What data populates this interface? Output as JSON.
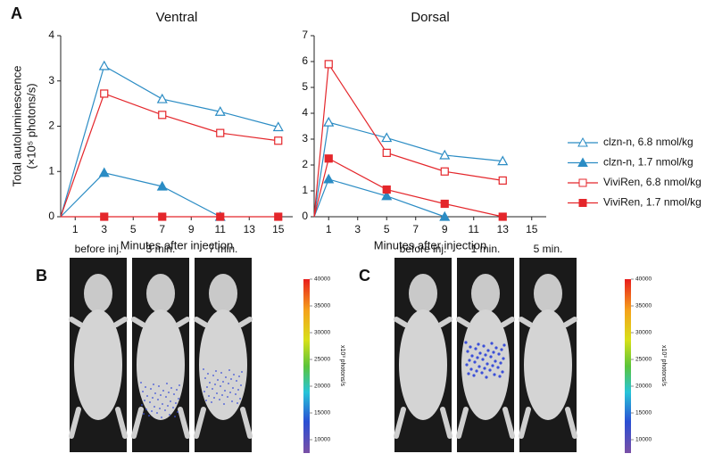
{
  "figure_label": "A",
  "chart_data": [
    {
      "type": "line",
      "title": "Ventral",
      "x_label": "Minutes after injection",
      "y_label": [
        "Total autoluminescence",
        "(×10⁵ photons/s)"
      ],
      "xlim": [
        0,
        16
      ],
      "ylim": [
        0,
        4
      ],
      "xticks": [
        1,
        3,
        5,
        7,
        9,
        11,
        13,
        15
      ],
      "yticks": [
        0,
        1,
        2,
        3,
        4
      ],
      "series": [
        {
          "color": "#2b8cc4",
          "marker": "triangle-open",
          "x": [
            0,
            3,
            7,
            11,
            15
          ],
          "values": [
            0,
            3.33,
            2.6,
            2.32,
            1.98
          ]
        },
        {
          "color": "#2b8cc4",
          "marker": "triangle-filled",
          "x": [
            0,
            3,
            7,
            11
          ],
          "values": [
            0,
            0.97,
            0.67,
            0
          ]
        },
        {
          "color": "#e4262b",
          "marker": "square-open",
          "x": [
            0,
            3,
            7,
            11,
            15
          ],
          "values": [
            0,
            2.72,
            2.25,
            1.85,
            1.68
          ]
        },
        {
          "color": "#e4262b",
          "marker": "square-filled",
          "x": [
            0,
            3,
            7,
            11,
            15
          ],
          "values": [
            0,
            0,
            0,
            0,
            0
          ]
        }
      ]
    },
    {
      "type": "line",
      "title": "Dorsal",
      "x_label": "Minutes after injection",
      "xlim": [
        0,
        16
      ],
      "ylim": [
        0,
        7
      ],
      "xticks": [
        1,
        3,
        5,
        7,
        9,
        11,
        13,
        15
      ],
      "yticks": [
        0,
        1,
        2,
        3,
        4,
        5,
        6,
        7
      ],
      "legend": "right",
      "series": [
        {
          "name": "clzn-n, 6.8 nmol/kg",
          "color": "#2b8cc4",
          "marker": "triangle-open",
          "x": [
            0,
            1,
            5,
            9,
            13
          ],
          "values": [
            0,
            3.65,
            3.05,
            2.38,
            2.15
          ]
        },
        {
          "name": "clzn-n, 1.7 nmol/kg",
          "color": "#2b8cc4",
          "marker": "triangle-filled",
          "x": [
            0,
            1,
            5,
            9
          ],
          "values": [
            0,
            1.45,
            0.8,
            0
          ]
        },
        {
          "name": "ViviRen, 6.8 nmol/kg",
          "color": "#e4262b",
          "marker": "square-open",
          "x": [
            0,
            1,
            5,
            9,
            13
          ],
          "values": [
            0,
            5.9,
            2.47,
            1.75,
            1.4
          ]
        },
        {
          "name": "ViviRen, 1.7 nmol/kg",
          "color": "#e4262b",
          "marker": "square-filled",
          "x": [
            0,
            1,
            5,
            9,
            13
          ],
          "values": [
            0,
            2.25,
            1.05,
            0.5,
            0
          ]
        }
      ]
    }
  ],
  "panels": [
    {
      "label": "B",
      "images": [
        "before inj.",
        "3 min.",
        "7 min."
      ],
      "colorbar": {
        "label": "x10³ photons/s",
        "lim": [
          7500,
          40000
        ],
        "ticks": [
          10000,
          15000,
          20000,
          25000,
          30000,
          35000,
          40000
        ]
      }
    },
    {
      "label": "C",
      "images": [
        "before inj.",
        "1 min.",
        "5 min."
      ],
      "colorbar": {
        "label": "x10³ photons/s",
        "lim": [
          7500,
          40000
        ],
        "ticks": [
          10000,
          15000,
          20000,
          25000,
          30000,
          35000,
          40000
        ]
      }
    }
  ]
}
